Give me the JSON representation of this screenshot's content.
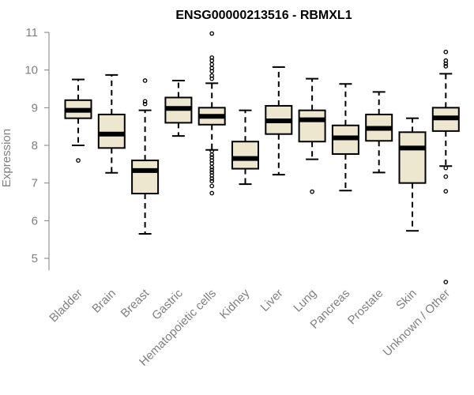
{
  "chart_data": {
    "type": "boxplot",
    "title": "ENSG00000213516 - RBMXL1",
    "xlabel": "",
    "ylabel": "Expression",
    "ylim": [
      4.25,
      11.0
    ],
    "yticks": [
      "5",
      "6",
      "7",
      "8",
      "9",
      "10",
      "11"
    ],
    "box_fill": "#EDE7CF",
    "categories": [
      "Bladder",
      "Brain",
      "Breast",
      "Gastric",
      "Hematopoietic cells",
      "Kidney",
      "Liver",
      "Lung",
      "Pancreas",
      "Prostate",
      "Skin",
      "Unknown / Other"
    ],
    "boxes": [
      {
        "name": "Bladder",
        "whisker_low": 8.0,
        "q1": 8.72,
        "median": 8.93,
        "q3": 9.2,
        "whisker_high": 9.75,
        "outliers": [
          7.6
        ]
      },
      {
        "name": "Brain",
        "whisker_low": 7.27,
        "q1": 7.93,
        "median": 8.3,
        "q3": 8.82,
        "whisker_high": 9.87,
        "outliers": []
      },
      {
        "name": "Breast",
        "whisker_low": 5.65,
        "q1": 6.72,
        "median": 7.33,
        "q3": 7.6,
        "whisker_high": 8.93,
        "outliers": [
          9.1,
          9.17,
          9.72
        ]
      },
      {
        "name": "Gastric",
        "whisker_low": 8.25,
        "q1": 8.6,
        "median": 8.98,
        "q3": 9.27,
        "whisker_high": 9.72,
        "outliers": []
      },
      {
        "name": "Hematopoietic cells",
        "whisker_low": 7.88,
        "q1": 8.55,
        "median": 8.77,
        "q3": 9.0,
        "whisker_high": 9.65,
        "outliers": [
          10.97,
          10.33,
          10.25,
          10.15,
          10.05,
          9.97,
          9.85,
          9.77,
          7.85,
          7.75,
          7.68,
          7.6,
          7.52,
          7.42,
          7.35,
          7.28,
          7.2,
          7.12,
          7.05,
          6.92,
          6.73
        ]
      },
      {
        "name": "Kidney",
        "whisker_low": 6.97,
        "q1": 7.38,
        "median": 7.65,
        "q3": 8.1,
        "whisker_high": 8.93,
        "outliers": []
      },
      {
        "name": "Liver",
        "whisker_low": 7.22,
        "q1": 8.3,
        "median": 8.65,
        "q3": 9.05,
        "whisker_high": 10.08,
        "outliers": []
      },
      {
        "name": "Lung",
        "whisker_low": 7.63,
        "q1": 8.1,
        "median": 8.68,
        "q3": 8.93,
        "whisker_high": 9.77,
        "outliers": [
          6.77
        ]
      },
      {
        "name": "Pancreas",
        "whisker_low": 6.8,
        "q1": 7.77,
        "median": 8.2,
        "q3": 8.53,
        "whisker_high": 9.63,
        "outliers": []
      },
      {
        "name": "Prostate",
        "whisker_low": 7.28,
        "q1": 8.12,
        "median": 8.45,
        "q3": 8.82,
        "whisker_high": 9.42,
        "outliers": []
      },
      {
        "name": "Skin",
        "whisker_low": 5.73,
        "q1": 7.0,
        "median": 7.93,
        "q3": 8.35,
        "whisker_high": 8.72,
        "outliers": []
      },
      {
        "name": "Unknown / Other",
        "whisker_low": 7.45,
        "q1": 8.38,
        "median": 8.73,
        "q3": 9.0,
        "whisker_high": 9.9,
        "outliers": [
          10.48,
          10.25,
          10.17,
          10.1,
          7.4,
          7.17,
          6.78,
          4.37
        ]
      }
    ]
  }
}
